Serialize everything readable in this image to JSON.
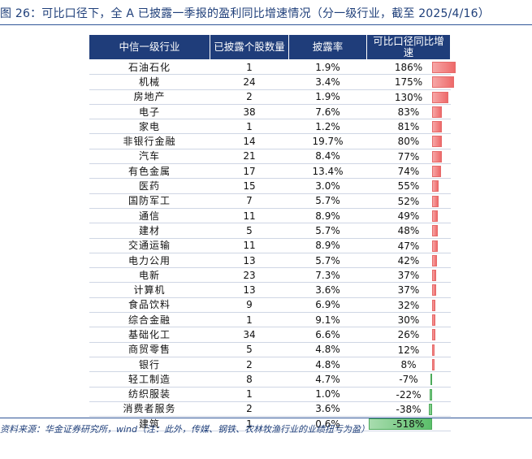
{
  "title": {
    "prefix": "图 26：",
    "text": "可比口径下，全 A 已披露一季报的盈利同比增速情况（分一级行业，截至 2025/4/16）"
  },
  "table": {
    "headers": [
      "中信一级行业",
      "已披露个股数量",
      "披露率",
      "可比口径同比增速"
    ],
    "rows": [
      {
        "industry": "石油石化",
        "count": "1",
        "ratio": "1.9%",
        "growth": "186%",
        "growth_value": 186
      },
      {
        "industry": "机械",
        "count": "24",
        "ratio": "3.4%",
        "growth": "175%",
        "growth_value": 175
      },
      {
        "industry": "房地产",
        "count": "2",
        "ratio": "1.9%",
        "growth": "130%",
        "growth_value": 130
      },
      {
        "industry": "电子",
        "count": "38",
        "ratio": "7.6%",
        "growth": "83%",
        "growth_value": 83
      },
      {
        "industry": "家电",
        "count": "1",
        "ratio": "1.2%",
        "growth": "81%",
        "growth_value": 81
      },
      {
        "industry": "非银行金融",
        "count": "14",
        "ratio": "19.7%",
        "growth": "80%",
        "growth_value": 80
      },
      {
        "industry": "汽车",
        "count": "21",
        "ratio": "8.4%",
        "growth": "77%",
        "growth_value": 77
      },
      {
        "industry": "有色金属",
        "count": "17",
        "ratio": "13.4%",
        "growth": "74%",
        "growth_value": 74
      },
      {
        "industry": "医药",
        "count": "15",
        "ratio": "3.0%",
        "growth": "55%",
        "growth_value": 55
      },
      {
        "industry": "国防军工",
        "count": "7",
        "ratio": "5.7%",
        "growth": "52%",
        "growth_value": 52
      },
      {
        "industry": "通信",
        "count": "11",
        "ratio": "8.9%",
        "growth": "49%",
        "growth_value": 49
      },
      {
        "industry": "建材",
        "count": "5",
        "ratio": "5.7%",
        "growth": "48%",
        "growth_value": 48
      },
      {
        "industry": "交通运输",
        "count": "11",
        "ratio": "8.9%",
        "growth": "47%",
        "growth_value": 47
      },
      {
        "industry": "电力公用",
        "count": "13",
        "ratio": "5.7%",
        "growth": "42%",
        "growth_value": 42
      },
      {
        "industry": "电新",
        "count": "23",
        "ratio": "7.3%",
        "growth": "37%",
        "growth_value": 37
      },
      {
        "industry": "计算机",
        "count": "13",
        "ratio": "3.6%",
        "growth": "37%",
        "growth_value": 37
      },
      {
        "industry": "食品饮料",
        "count": "9",
        "ratio": "6.9%",
        "growth": "32%",
        "growth_value": 32
      },
      {
        "industry": "综合金融",
        "count": "1",
        "ratio": "9.1%",
        "growth": "30%",
        "growth_value": 30
      },
      {
        "industry": "基础化工",
        "count": "34",
        "ratio": "6.6%",
        "growth": "26%",
        "growth_value": 26
      },
      {
        "industry": "商贸零售",
        "count": "5",
        "ratio": "4.8%",
        "growth": "12%",
        "growth_value": 12
      },
      {
        "industry": "银行",
        "count": "2",
        "ratio": "4.8%",
        "growth": "8%",
        "growth_value": 8
      },
      {
        "industry": "轻工制造",
        "count": "8",
        "ratio": "4.7%",
        "growth": "-7%",
        "growth_value": -7
      },
      {
        "industry": "纺织服装",
        "count": "1",
        "ratio": "1.0%",
        "growth": "-22%",
        "growth_value": -22
      },
      {
        "industry": "消费者服务",
        "count": "2",
        "ratio": "3.6%",
        "growth": "-38%",
        "growth_value": -38
      },
      {
        "industry": "建筑",
        "count": "1",
        "ratio": "0.6%",
        "growth": "-518%",
        "growth_value": -518
      }
    ]
  },
  "source": "资料来源：华金证券研究所，wind（注：此外，传媒、钢铁、农林牧渔行业的业绩扭亏为盈）",
  "colors": {
    "header_bg": "#1f3d7a",
    "positive_bar": "#ee6a6a",
    "negative_bar": "#5bbf6a",
    "title": "#1f3f7a"
  }
}
